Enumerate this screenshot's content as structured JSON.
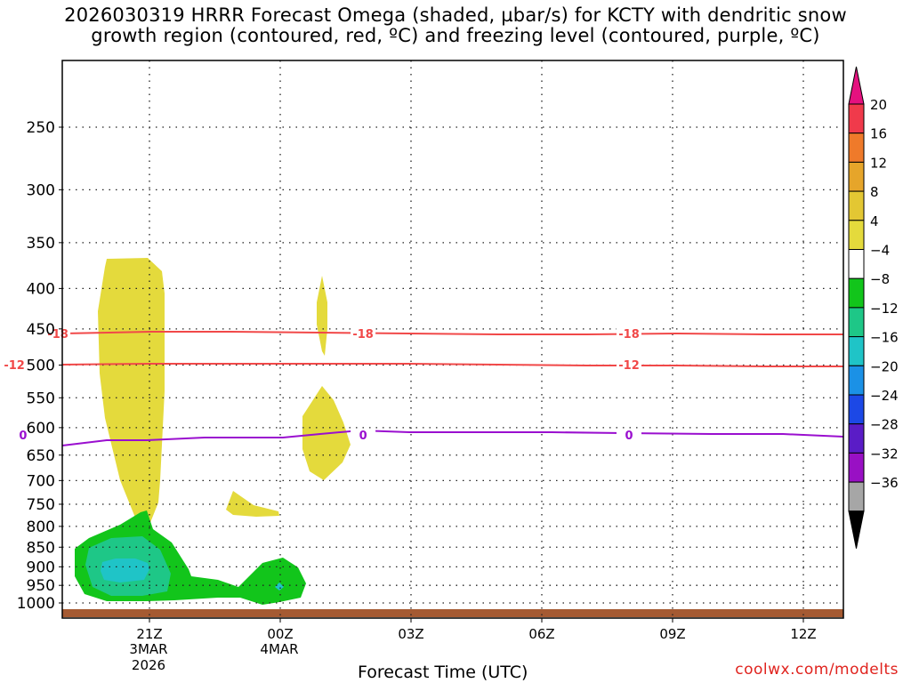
{
  "title": {
    "line1": "2026030319 HRRR Forecast Omega (shaded, µbar/s) for KCTY with dendritic snow",
    "line2": "growth region (contoured, red, ºC) and freezing level (contoured, purple, ºC)"
  },
  "watermark": "coolwx.com/modelts",
  "chart_data": {
    "type": "time-height contour",
    "title": "2026030319 HRRR Forecast Omega (shaded, µbar/s) for KCTY with dendritic snow growth region (contoured, red, ºC) and freezing level (contoured, purple, ºC)",
    "xlabel": "Forecast Time (UTC)",
    "ylabel": "",
    "x_ticks": [
      {
        "label": "21Z",
        "sub": [
          "3MAR",
          "2026"
        ]
      },
      {
        "label": "00Z",
        "sub": [
          "4MAR"
        ]
      },
      {
        "label": "03Z",
        "sub": []
      },
      {
        "label": "06Z",
        "sub": []
      },
      {
        "label": "09Z",
        "sub": []
      },
      {
        "label": "12Z",
        "sub": []
      }
    ],
    "y_ticks": [
      250,
      300,
      350,
      400,
      450,
      500,
      550,
      600,
      650,
      700,
      750,
      800,
      850,
      900,
      950,
      1000
    ],
    "grid": true,
    "colorbar": {
      "labels": [
        "20",
        "16",
        "12",
        "8",
        "4",
        "−4",
        "−8",
        "−12",
        "−16",
        "−20",
        "−24",
        "−28",
        "−32",
        "−36"
      ],
      "colors": [
        "#f03a4b",
        "#ef7a2a",
        "#e6a52a",
        "#e3c733",
        "#e4da3c",
        "#ffffff",
        "#12c51b",
        "#1ec787",
        "#1fc4c7",
        "#1b91e6",
        "#1c48e6",
        "#5a1cc6",
        "#9910c4",
        "#a6a6a6"
      ],
      "top_arrow_color": "#e5117f",
      "bottom_arrow_color": "#000000"
    },
    "contours": [
      {
        "name": "dendritic snow growth -18",
        "color": "#f14848",
        "label": "-18",
        "label_hours": [
          -2.1,
          4.9,
          11.0
        ]
      },
      {
        "name": "dendritic snow growth -12",
        "color": "#f14848",
        "label": "-12",
        "label_hours": [
          -3.1,
          11.0
        ]
      },
      {
        "name": "freezing level 0",
        "color": "#9a0fcf",
        "label": "0",
        "label_hours": [
          -2.9,
          4.9,
          11.0
        ]
      }
    ],
    "shaded_regions": [
      {
        "omega_range": "4 to 8",
        "color": "#e4da3c"
      },
      {
        "omega_range": "-8 to -4",
        "color": "#12c51b"
      },
      {
        "omega_range": "-12 to -8",
        "color": "#1ec787"
      },
      {
        "omega_range": "-16 to -12",
        "color": "#1fc4c7"
      }
    ],
    "surface_color": "#a55a32"
  }
}
